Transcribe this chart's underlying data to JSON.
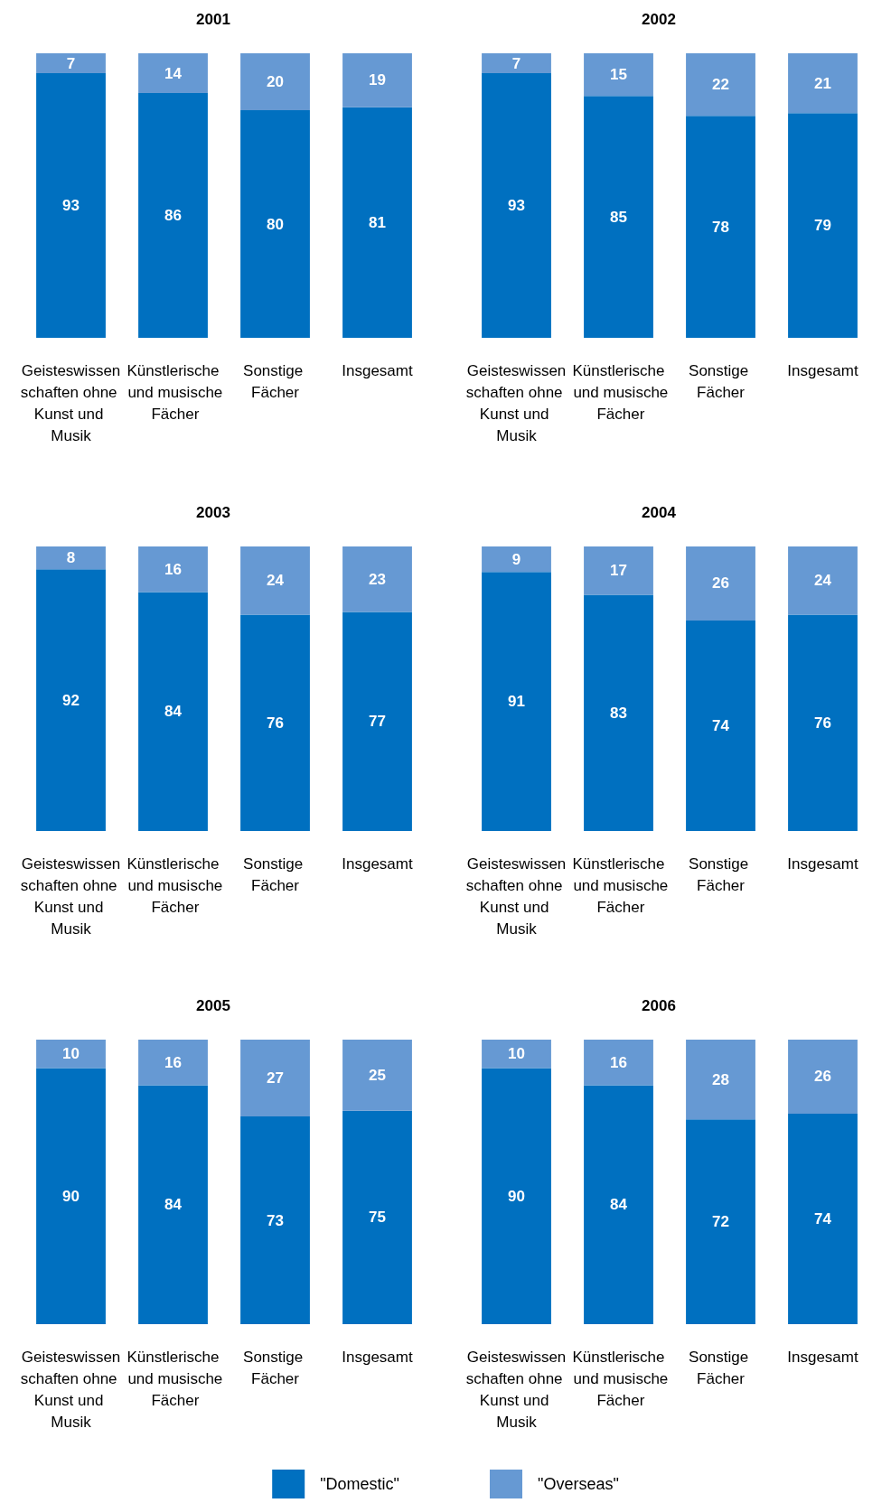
{
  "chart_data": [
    {
      "type": "bar",
      "title": "2001",
      "stacked": true,
      "data_labels": true,
      "tick_labels": "x",
      "ylim": [
        0,
        100
      ],
      "categories": [
        "Geisteswissenschaften ohne Kunst und Musik",
        "Künstlerische und musische Fächer",
        "Sonstige Fächer",
        "Insgesamt"
      ],
      "series": [
        {
          "color": "#0070c0",
          "values": [
            93,
            86,
            80,
            81
          ]
        },
        {
          "color": "#6699d3",
          "values": [
            7,
            14,
            20,
            19
          ]
        }
      ]
    },
    {
      "type": "bar",
      "title": "2002",
      "stacked": true,
      "data_labels": true,
      "tick_labels": "x",
      "ylim": [
        0,
        100
      ],
      "categories": [
        "Geisteswissenschaften ohne Kunst und Musik",
        "Künstlerische und musische Fächer",
        "Sonstige Fächer",
        "Insgesamt"
      ],
      "series": [
        {
          "color": "#0070c0",
          "values": [
            93,
            85,
            78,
            79
          ]
        },
        {
          "color": "#6699d3",
          "values": [
            7,
            15,
            22,
            21
          ]
        }
      ]
    },
    {
      "type": "bar",
      "title": "2003",
      "stacked": true,
      "data_labels": true,
      "tick_labels": "x",
      "ylim": [
        0,
        100
      ],
      "categories": [
        "Geisteswissenschaften ohne Kunst und Musik",
        "Künstlerische und musische Fächer",
        "Sonstige Fächer",
        "Insgesamt"
      ],
      "series": [
        {
          "color": "#0070c0",
          "values": [
            92,
            84,
            76,
            77
          ]
        },
        {
          "color": "#6699d3",
          "values": [
            8,
            16,
            24,
            23
          ]
        }
      ]
    },
    {
      "type": "bar",
      "title": "2004",
      "stacked": true,
      "data_labels": true,
      "tick_labels": "x",
      "ylim": [
        0,
        100
      ],
      "categories": [
        "Geisteswissenschaften ohne Kunst und Musik",
        "Künstlerische und musische Fächer",
        "Sonstige Fächer",
        "Insgesamt"
      ],
      "series": [
        {
          "color": "#0070c0",
          "values": [
            91,
            83,
            74,
            76
          ]
        },
        {
          "color": "#6699d3",
          "values": [
            9,
            17,
            26,
            24
          ]
        }
      ]
    },
    {
      "type": "bar",
      "title": "2005",
      "stacked": true,
      "data_labels": true,
      "tick_labels": "x",
      "ylim": [
        0,
        100
      ],
      "categories": [
        "Geisteswissenschaften ohne Kunst und Musik",
        "Künstlerische und musische Fächer",
        "Sonstige Fächer",
        "Insgesamt"
      ],
      "series": [
        {
          "color": "#0070c0",
          "values": [
            90,
            84,
            73,
            75
          ]
        },
        {
          "color": "#6699d3",
          "values": [
            10,
            16,
            27,
            25
          ]
        }
      ]
    },
    {
      "type": "bar",
      "title": "2006",
      "stacked": true,
      "data_labels": true,
      "tick_labels": "x",
      "ylim": [
        0,
        100
      ],
      "legend": "bottom",
      "categories": [
        "Geisteswissenschaften ohne Kunst und Musik",
        "Künstlerische und musische Fächer",
        "Sonstige Fächer",
        "Insgesamt"
      ],
      "series": [
        {
          "name": "\"Domestic\"",
          "color": "#0070c0",
          "values": [
            90,
            84,
            72,
            74
          ]
        },
        {
          "name": "\"Overseas\"",
          "color": "#6699d3",
          "values": [
            10,
            16,
            28,
            26
          ]
        }
      ]
    }
  ]
}
